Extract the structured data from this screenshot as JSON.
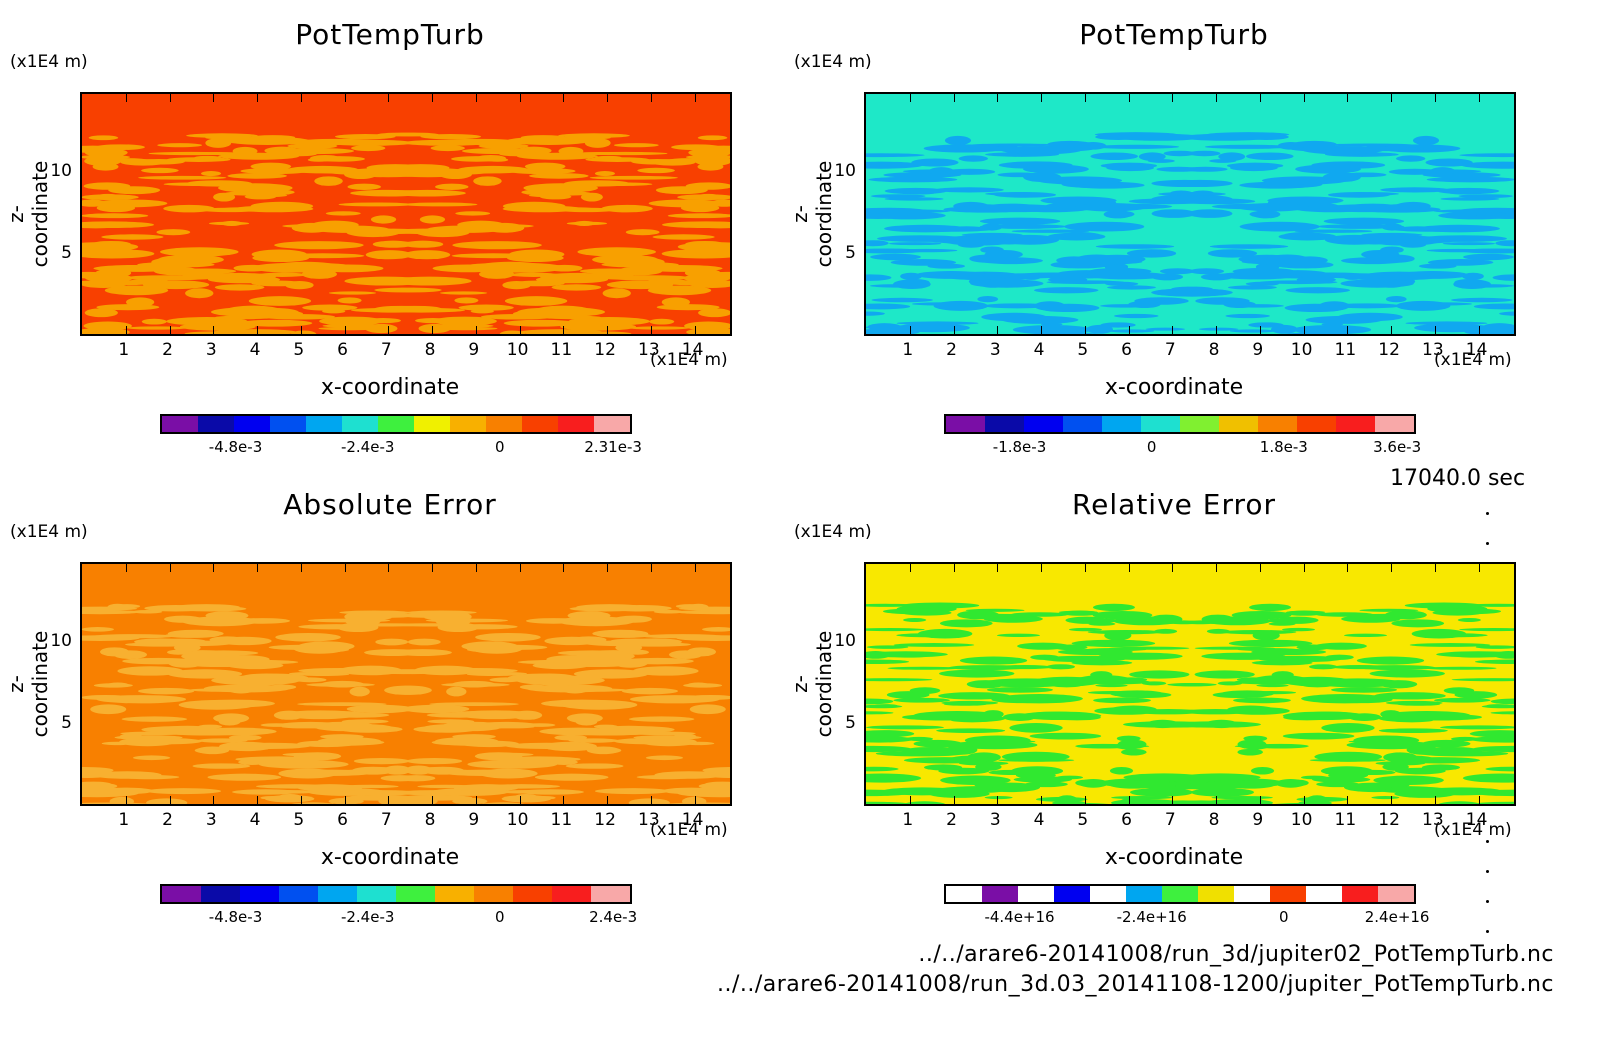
{
  "timestamp": "17040.0 sec",
  "files": [
    "../../arare6-20141008/run_3d/jupiter02_PotTempTurb.nc",
    "../../arare6-20141008/run_3d.03_20141108-1200/jupiter_PotTempTurb.nc"
  ],
  "chart_data": [
    {
      "type": "heatmap",
      "title": "PotTempTurb",
      "xlabel": "x-coordinate",
      "ylabel": "z-coordinate",
      "x_unit": "(x1E4 m)",
      "z_unit": "(x1E4 m)",
      "xticks": [
        "1",
        "2",
        "3",
        "4",
        "5",
        "6",
        "7",
        "8",
        "9",
        "10",
        "11",
        "12",
        "13",
        "14"
      ],
      "yticks": [
        "5",
        "10"
      ],
      "colorbar": {
        "colors": [
          "#7a0ea6",
          "#0a0aa8",
          "#0000f0",
          "#0050f0",
          "#00a6f0",
          "#1ee0d0",
          "#3ef03e",
          "#f0f000",
          "#f8b000",
          "#f88000",
          "#f84000",
          "#f81e1e",
          "#f8a8a8"
        ],
        "tick_labels": [
          "-4.8e-3",
          "-2.4e-3",
          "0",
          "2.31e-3"
        ]
      },
      "background": "#f84000",
      "pattern": "#f8a000"
    },
    {
      "type": "heatmap",
      "title": "PotTempTurb",
      "xlabel": "x-coordinate",
      "ylabel": "z-coordinate",
      "x_unit": "(x1E4 m)",
      "z_unit": "(x1E4 m)",
      "xticks": [
        "1",
        "2",
        "3",
        "4",
        "5",
        "6",
        "7",
        "8",
        "9",
        "10",
        "11",
        "12",
        "13",
        "14"
      ],
      "yticks": [
        "5",
        "10"
      ],
      "colorbar": {
        "colors": [
          "#7a0ea6",
          "#0a0aa8",
          "#0000f0",
          "#0050f0",
          "#00a6f0",
          "#1ee0d0",
          "#80f030",
          "#f0c000",
          "#f88000",
          "#f84000",
          "#f81e1e",
          "#f8a8a8"
        ],
        "tick_labels": [
          "-1.8e-3",
          "0",
          "1.8e-3",
          "3.6e-3"
        ]
      },
      "background": "#1ee8c8",
      "pattern": "#10a8f0"
    },
    {
      "type": "heatmap",
      "title": "Absolute Error",
      "xlabel": "x-coordinate",
      "ylabel": "z-coordinate",
      "x_unit": "(x1E4 m)",
      "z_unit": "(x1E4 m)",
      "xticks": [
        "1",
        "2",
        "3",
        "4",
        "5",
        "6",
        "7",
        "8",
        "9",
        "10",
        "11",
        "12",
        "13",
        "14"
      ],
      "yticks": [
        "5",
        "10"
      ],
      "colorbar": {
        "colors": [
          "#7a0ea6",
          "#0a0aa8",
          "#0000f0",
          "#0050f0",
          "#00a6f0",
          "#1ee0d0",
          "#3ef03e",
          "#f8b000",
          "#f88000",
          "#f84000",
          "#f81e1e",
          "#f8a8a8"
        ],
        "tick_labels": [
          "-4.8e-3",
          "-2.4e-3",
          "0",
          "2.4e-3"
        ]
      },
      "background": "#f88000",
      "pattern": "#f8b030"
    },
    {
      "type": "heatmap",
      "title": "Relative Error",
      "xlabel": "x-coordinate",
      "ylabel": "z-coordinate",
      "x_unit": "(x1E4 m)",
      "z_unit": "(x1E4 m)",
      "xticks": [
        "1",
        "2",
        "3",
        "4",
        "5",
        "6",
        "7",
        "8",
        "9",
        "10",
        "11",
        "12",
        "13",
        "14"
      ],
      "yticks": [
        "5",
        "10"
      ],
      "colorbar": {
        "colors": [
          "#ffffff",
          "#7a0ea6",
          "#ffffff",
          "#0000f0",
          "#ffffff",
          "#00a6f0",
          "#3ef03e",
          "#f0e000",
          "#ffffff",
          "#f84000",
          "#ffffff",
          "#f81e1e",
          "#f8a8a8"
        ],
        "tick_labels": [
          "-4.4e+16",
          "-2.4e+16",
          "0",
          "2.4e+16"
        ]
      },
      "background": "#f8e800",
      "pattern": "#30e830"
    }
  ]
}
